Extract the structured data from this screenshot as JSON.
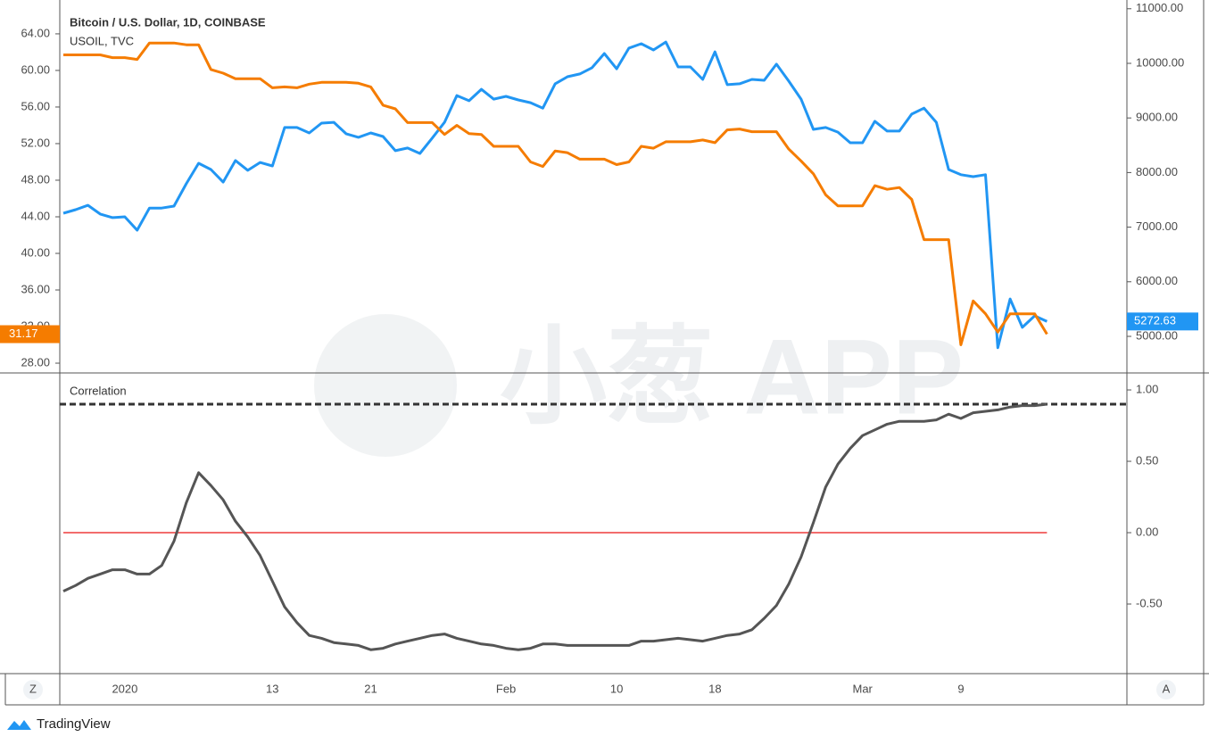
{
  "chart_data": [
    {
      "type": "line",
      "series": [
        {
          "name": "Bitcoin / U.S. Dollar, 1D, COINBASE",
          "color": "#2196f3",
          "axis": "y2",
          "values": [
            7255,
            7320,
            7400,
            7240,
            7175,
            7190,
            6945,
            7350,
            7350,
            7385,
            7795,
            8170,
            8055,
            7825,
            8220,
            8040,
            8185,
            8120,
            8825,
            8825,
            8725,
            8905,
            8920,
            8710,
            8645,
            8725,
            8660,
            8400,
            8450,
            8350,
            8630,
            8920,
            9410,
            9315,
            9525,
            9345,
            9395,
            9330,
            9280,
            9180,
            9625,
            9755,
            9805,
            9920,
            10180,
            9900,
            10280,
            10360,
            10245,
            10390,
            9935,
            9935,
            9705,
            10210,
            9610,
            9625,
            9705,
            9690,
            9985,
            9675,
            9345,
            8790,
            8825,
            8740,
            8545,
            8545,
            8940,
            8760,
            8760,
            9070,
            9180,
            8920,
            8055,
            7960,
            7925,
            7960,
            4790,
            5685,
            5165,
            5375,
            5272.63
          ]
        },
        {
          "name": "USOIL, TVC",
          "color": "#f57c00",
          "values": [
            61.7,
            61.7,
            61.7,
            61.7,
            61.4,
            61.4,
            61.2,
            63.0,
            63.0,
            63.0,
            62.8,
            62.8,
            60.1,
            59.7,
            59.1,
            59.1,
            59.1,
            58.1,
            58.2,
            58.1,
            58.5,
            58.7,
            58.7,
            58.7,
            58.6,
            58.2,
            56.2,
            55.8,
            54.3,
            54.3,
            54.3,
            53.0,
            54.0,
            53.1,
            53.0,
            51.7,
            51.7,
            51.7,
            50.0,
            49.5,
            51.2,
            51.0,
            50.3,
            50.3,
            50.3,
            49.7,
            50.0,
            51.7,
            51.5,
            52.2,
            52.2,
            52.2,
            52.4,
            52.1,
            53.5,
            53.6,
            53.3,
            53.3,
            53.3,
            51.4,
            50.1,
            48.7,
            46.4,
            45.2,
            45.2,
            45.2,
            47.4,
            47.0,
            47.2,
            45.9,
            41.5,
            41.5,
            41.5,
            30.0,
            34.8,
            33.4,
            31.4,
            33.4,
            33.4,
            33.4,
            31.17
          ]
        }
      ],
      "ylim": [
        26.93,
        67.7
      ],
      "yticks": [
        {
          "value": 28,
          "label": "28.00"
        },
        {
          "value": 32,
          "label": "32.00"
        },
        {
          "value": 36,
          "label": "36.00"
        },
        {
          "value": 40,
          "label": "40.00"
        },
        {
          "value": 44,
          "label": "44.00"
        },
        {
          "value": 48,
          "label": "48.00"
        },
        {
          "value": 52,
          "label": "52.00"
        },
        {
          "value": 56,
          "label": "56.00"
        },
        {
          "value": 60,
          "label": "60.00"
        },
        {
          "value": 64,
          "label": "64.00"
        }
      ],
      "y2lim": [
        4330,
        11160
      ],
      "y2ticks": [
        {
          "value": 5000,
          "label": "5000.00"
        },
        {
          "value": 6000,
          "label": "6000.00"
        },
        {
          "value": 7000,
          "label": "7000.00"
        },
        {
          "value": 8000,
          "label": "8000.00"
        },
        {
          "value": 9000,
          "label": "9000.00"
        },
        {
          "value": 10000,
          "label": "10000.00"
        },
        {
          "value": 11000,
          "label": "11000.00"
        }
      ]
    },
    {
      "type": "line",
      "categories": [
        null,
        null,
        null,
        null,
        null,
        "2020",
        null,
        null,
        null,
        null,
        null,
        null,
        null,
        null,
        null,
        null,
        null,
        "13",
        null,
        null,
        null,
        null,
        null,
        null,
        null,
        "21",
        null,
        null,
        null,
        null,
        null,
        null,
        null,
        null,
        null,
        null,
        "Feb",
        null,
        null,
        null,
        null,
        null,
        null,
        null,
        null,
        "10",
        null,
        null,
        null,
        null,
        null,
        null,
        null,
        "18",
        null,
        null,
        null,
        null,
        null,
        null,
        null,
        null,
        null,
        null,
        null,
        "Mar",
        null,
        null,
        null,
        null,
        null,
        null,
        null,
        "9",
        null,
        null,
        null,
        null,
        null,
        null,
        null
      ],
      "series": [
        {
          "name": "Correlation",
          "color": "#555555",
          "values": [
            -0.41,
            -0.37,
            -0.32,
            -0.29,
            -0.26,
            -0.26,
            -0.29,
            -0.29,
            -0.23,
            -0.06,
            0.21,
            0.42,
            0.33,
            0.23,
            0.08,
            -0.03,
            -0.16,
            -0.34,
            -0.52,
            -0.63,
            -0.72,
            -0.74,
            -0.77,
            -0.78,
            -0.79,
            -0.82,
            -0.81,
            -0.78,
            -0.76,
            -0.74,
            -0.72,
            -0.71,
            -0.74,
            -0.76,
            -0.78,
            -0.79,
            -0.81,
            -0.82,
            -0.81,
            -0.78,
            -0.78,
            -0.79,
            -0.79,
            -0.79,
            -0.79,
            -0.79,
            -0.79,
            -0.76,
            -0.76,
            -0.75,
            -0.74,
            -0.75,
            -0.76,
            -0.74,
            -0.72,
            -0.71,
            -0.68,
            -0.6,
            -0.51,
            -0.36,
            -0.17,
            0.07,
            0.32,
            0.48,
            0.59,
            0.68,
            0.72,
            0.76,
            0.78,
            0.78,
            0.78,
            0.79,
            0.83,
            0.8,
            0.84,
            0.85,
            0.86,
            0.88,
            0.89,
            0.89,
            0.9
          ]
        }
      ],
      "hlines": [
        {
          "value": 0.9,
          "color": "#333333",
          "dashed": true
        },
        {
          "value": 0,
          "color": "#f26c6c",
          "dashed": false
        }
      ],
      "ylim": [
        -0.9875,
        1.119
      ],
      "yticks": [
        {
          "value": 1,
          "label": "1.00"
        },
        {
          "value": 0.5,
          "label": "0.50"
        },
        {
          "value": 0,
          "label": "0.00"
        },
        {
          "value": -0.5,
          "label": "-0.50"
        }
      ]
    }
  ],
  "watermark": "小葱 APP",
  "buttons": {
    "left": "Z",
    "right": "A"
  },
  "brand": "TradingView"
}
